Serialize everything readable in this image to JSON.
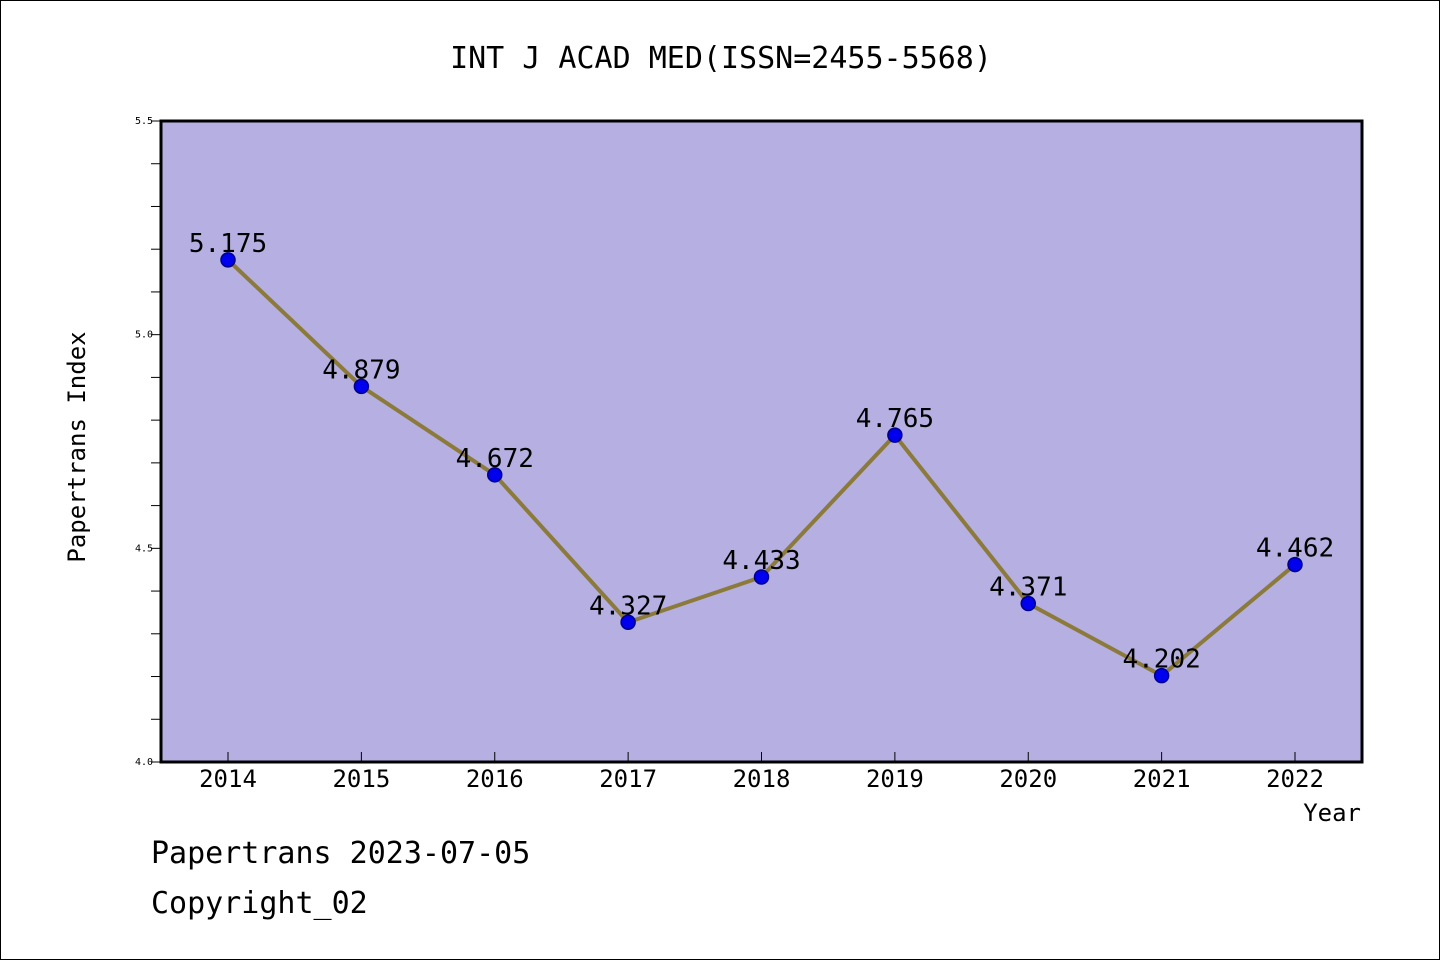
{
  "chart_data": {
    "type": "line",
    "title": "INT J ACAD MED(ISSN=2455-5568)",
    "xlabel": "Year",
    "ylabel": "Papertrans Index",
    "categories": [
      "2014",
      "2015",
      "2016",
      "2017",
      "2018",
      "2019",
      "2020",
      "2021",
      "2022"
    ],
    "values": [
      5.175,
      4.879,
      4.672,
      4.327,
      4.433,
      4.765,
      4.371,
      4.202,
      4.462
    ],
    "data_labels": [
      "5.175",
      "4.879",
      "4.672",
      "4.327",
      "4.433",
      "4.765",
      "4.371",
      "4.202",
      "4.462"
    ],
    "ylim": [
      4.0,
      5.5
    ],
    "yticks": [
      "4.0",
      "4.5",
      "5.0",
      "5.5"
    ],
    "grid": false,
    "colors": {
      "plot_background": "#b5afe2",
      "line": "#8b7a3a",
      "marker": "#0000ee",
      "marker_edge": "#00008b"
    }
  },
  "footer": {
    "line1": "Papertrans 2023-07-05",
    "line2": "Copyright_02"
  }
}
